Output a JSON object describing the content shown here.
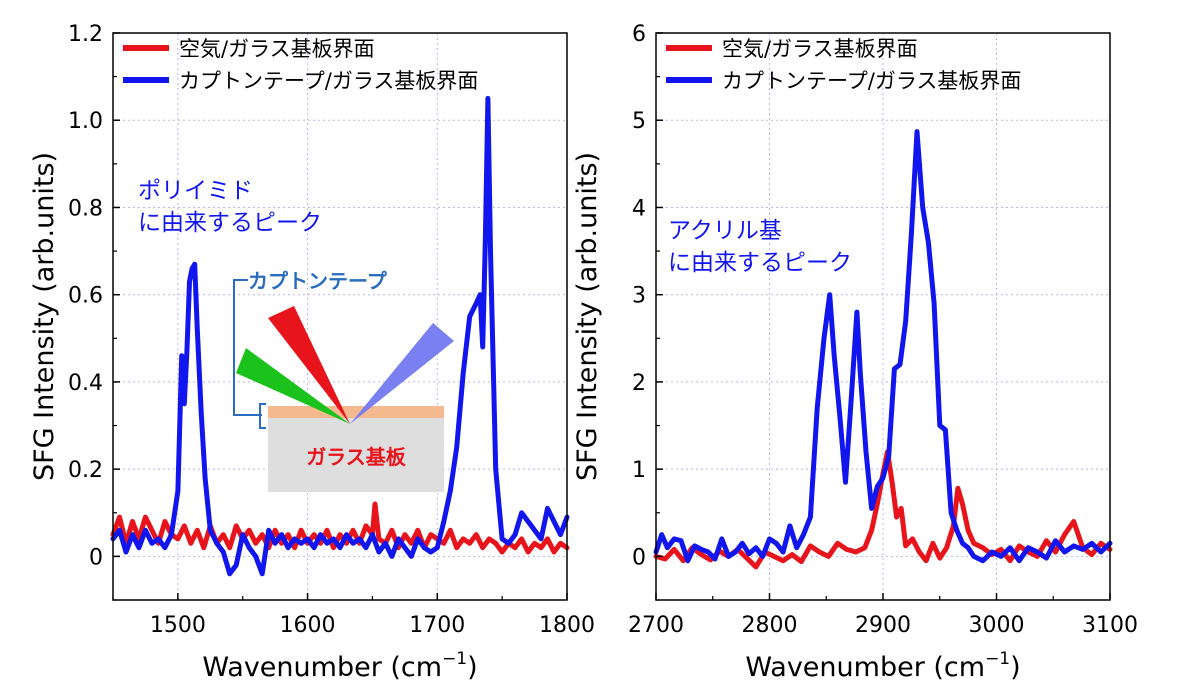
{
  "colors": {
    "red": "#e8141b",
    "blue": "#1216ee",
    "grid": "#b8b8e6",
    "bracket": "#2a6cc0",
    "substrate_fill": "#dedede",
    "tape_fill": "#f4b98f"
  },
  "chart_data": [
    {
      "type": "line",
      "xlabel": "Wavenumber (cm",
      "xlabel_sup": "−1",
      "xlabel_end": ")",
      "ylabel": "SFG Intensity (arb.units)",
      "xlim": [
        1450,
        1800
      ],
      "ylim": [
        -0.1,
        1.2
      ],
      "xticks": [
        1500,
        1600,
        1700,
        1800
      ],
      "xtick_labels": [
        "1500",
        "1600",
        "1700",
        "1800"
      ],
      "yticks": [
        0,
        0.2,
        0.4,
        0.6,
        0.8,
        1.0,
        1.2
      ],
      "ytick_labels": [
        "0",
        "0.2",
        "0.4",
        "0.6",
        "0.8",
        "1.0",
        "1.2"
      ],
      "grid": true,
      "legend_position": "top-left",
      "series": [
        {
          "name": "空気/ガラス基板界面",
          "color_key": "red",
          "x": [
            1450,
            1455,
            1460,
            1465,
            1470,
            1475,
            1480,
            1485,
            1490,
            1495,
            1500,
            1505,
            1510,
            1515,
            1520,
            1525,
            1530,
            1535,
            1540,
            1545,
            1550,
            1555,
            1560,
            1565,
            1570,
            1575,
            1580,
            1585,
            1590,
            1595,
            1600,
            1605,
            1610,
            1615,
            1620,
            1625,
            1630,
            1635,
            1640,
            1645,
            1650,
            1652,
            1655,
            1660,
            1665,
            1670,
            1675,
            1680,
            1685,
            1690,
            1695,
            1700,
            1705,
            1710,
            1715,
            1720,
            1725,
            1730,
            1735,
            1740,
            1745,
            1750,
            1755,
            1760,
            1765,
            1770,
            1775,
            1780,
            1785,
            1790,
            1795,
            1800
          ],
          "y": [
            0.05,
            0.09,
            0.03,
            0.08,
            0.04,
            0.09,
            0.06,
            0.03,
            0.08,
            0.05,
            0.04,
            0.07,
            0.03,
            0.06,
            0.02,
            0.07,
            0.03,
            0.05,
            0.02,
            0.07,
            0.04,
            0.06,
            0.03,
            0.05,
            0.02,
            0.06,
            0.03,
            0.05,
            0.02,
            0.06,
            0.03,
            0.05,
            0.03,
            0.06,
            0.02,
            0.05,
            0.03,
            0.06,
            0.03,
            0.07,
            0.05,
            0.12,
            0.04,
            0.03,
            0.06,
            0.02,
            0.05,
            0.03,
            0.06,
            0.02,
            0.05,
            0.04,
            0.03,
            0.06,
            0.02,
            0.04,
            0.03,
            0.05,
            0.02,
            0.04,
            0.03,
            0.01,
            0.03,
            0.02,
            0.04,
            0.01,
            0.03,
            0.02,
            0.04,
            0.01,
            0.03,
            0.02
          ]
        },
        {
          "name": "カプトンテープ/ガラス基板界面",
          "color_key": "blue",
          "x": [
            1450,
            1455,
            1460,
            1465,
            1470,
            1475,
            1480,
            1485,
            1490,
            1495,
            1500,
            1503,
            1505,
            1507,
            1509,
            1511,
            1513,
            1515,
            1518,
            1521,
            1525,
            1530,
            1535,
            1540,
            1545,
            1550,
            1555,
            1560,
            1565,
            1570,
            1575,
            1580,
            1585,
            1590,
            1595,
            1600,
            1605,
            1610,
            1615,
            1620,
            1625,
            1630,
            1635,
            1640,
            1645,
            1650,
            1655,
            1660,
            1665,
            1670,
            1675,
            1680,
            1685,
            1690,
            1695,
            1700,
            1705,
            1710,
            1715,
            1720,
            1725,
            1730,
            1733,
            1735,
            1737,
            1739,
            1741,
            1743,
            1745,
            1750,
            1755,
            1760,
            1765,
            1770,
            1775,
            1780,
            1785,
            1790,
            1795,
            1800
          ],
          "y": [
            0.04,
            0.06,
            0.01,
            0.05,
            0.02,
            0.06,
            0.03,
            0.04,
            0.02,
            0.05,
            0.15,
            0.46,
            0.35,
            0.47,
            0.63,
            0.66,
            0.67,
            0.52,
            0.33,
            0.18,
            0.06,
            0.03,
            0.01,
            -0.04,
            -0.02,
            0.05,
            0.02,
            0.0,
            -0.04,
            0.06,
            0.03,
            0.05,
            0.02,
            0.04,
            0.03,
            0.04,
            0.02,
            0.05,
            0.03,
            0.04,
            0.02,
            0.05,
            0.03,
            0.04,
            0.02,
            0.05,
            0.01,
            0.03,
            0.0,
            0.04,
            0.02,
            0.0,
            0.04,
            0.02,
            0.01,
            0.02,
            0.08,
            0.15,
            0.25,
            0.42,
            0.55,
            0.58,
            0.6,
            0.48,
            0.72,
            1.05,
            0.7,
            0.45,
            0.2,
            0.04,
            0.03,
            0.05,
            0.1,
            0.08,
            0.06,
            0.04,
            0.11,
            0.08,
            0.05,
            0.09
          ]
        }
      ],
      "annotations": {
        "peak_label_line1": "ポリイミド",
        "peak_label_line2": "に由来するピーク",
        "tape_label": "カプトンテープ",
        "substrate_label": "ガラス基板"
      }
    },
    {
      "type": "line",
      "xlabel": "Wavenumber (cm",
      "xlabel_sup": "−1",
      "xlabel_end": ")",
      "ylabel": "SFG Intensity (arb.units)",
      "xlim": [
        2700,
        3100
      ],
      "ylim": [
        -0.5,
        6
      ],
      "xticks": [
        2700,
        2800,
        2900,
        3000,
        3100
      ],
      "xtick_labels": [
        "2700",
        "2800",
        "2900",
        "3000",
        "3100"
      ],
      "yticks": [
        0,
        1,
        2,
        3,
        4,
        5,
        6
      ],
      "ytick_labels": [
        "0",
        "1",
        "2",
        "3",
        "4",
        "5",
        "6"
      ],
      "grid": true,
      "legend_position": "top-left",
      "series": [
        {
          "name": "空気/ガラス基板界面",
          "color_key": "red",
          "x": [
            2700,
            2708,
            2716,
            2724,
            2732,
            2740,
            2748,
            2756,
            2764,
            2772,
            2780,
            2788,
            2796,
            2804,
            2812,
            2820,
            2828,
            2836,
            2844,
            2852,
            2860,
            2868,
            2876,
            2884,
            2890,
            2895,
            2900,
            2904,
            2908,
            2912,
            2916,
            2920,
            2926,
            2932,
            2938,
            2944,
            2950,
            2956,
            2962,
            2966,
            2970,
            2975,
            2980,
            2988,
            2996,
            3004,
            3012,
            3020,
            3028,
            3036,
            3044,
            3052,
            3060,
            3068,
            3076,
            3084,
            3092,
            3100
          ],
          "y": [
            0.0,
            -0.03,
            0.08,
            -0.05,
            0.1,
            0.02,
            -0.04,
            0.06,
            0.0,
            0.08,
            -0.02,
            -0.12,
            0.05,
            0.0,
            -0.05,
            0.02,
            -0.06,
            0.12,
            0.05,
            0.0,
            0.15,
            0.08,
            0.05,
            0.1,
            0.3,
            0.6,
            0.95,
            1.2,
            0.85,
            0.45,
            0.55,
            0.12,
            0.2,
            0.05,
            -0.05,
            0.15,
            -0.02,
            0.1,
            0.35,
            0.78,
            0.6,
            0.3,
            0.15,
            0.1,
            0.02,
            0.08,
            -0.05,
            0.12,
            0.05,
            0.0,
            0.18,
            0.05,
            0.25,
            0.4,
            0.1,
            0.02,
            0.15,
            0.08
          ]
        },
        {
          "name": "カプトンテープ/ガラス基板界面",
          "color_key": "blue",
          "x": [
            2700,
            2705,
            2710,
            2716,
            2722,
            2728,
            2734,
            2740,
            2746,
            2752,
            2758,
            2764,
            2770,
            2776,
            2782,
            2788,
            2794,
            2800,
            2806,
            2812,
            2818,
            2824,
            2830,
            2836,
            2842,
            2848,
            2853,
            2857,
            2862,
            2867,
            2872,
            2877,
            2880,
            2885,
            2890,
            2895,
            2900,
            2905,
            2910,
            2915,
            2920,
            2925,
            2930,
            2935,
            2940,
            2945,
            2950,
            2955,
            2960,
            2965,
            2970,
            2975,
            2980,
            2988,
            2996,
            3004,
            3012,
            3020,
            3028,
            3036,
            3044,
            3052,
            3060,
            3068,
            3076,
            3084,
            3092,
            3100
          ],
          "y": [
            0.05,
            0.25,
            0.1,
            0.2,
            0.18,
            -0.05,
            0.12,
            0.08,
            0.05,
            -0.03,
            0.2,
            0.0,
            0.05,
            0.15,
            0.03,
            0.1,
            0.0,
            0.2,
            0.15,
            0.05,
            0.35,
            0.1,
            0.25,
            0.45,
            1.7,
            2.5,
            3.0,
            2.3,
            1.6,
            0.85,
            1.8,
            2.8,
            2.1,
            1.2,
            0.55,
            0.8,
            0.9,
            1.15,
            2.15,
            2.2,
            2.7,
            3.7,
            4.87,
            4.0,
            3.6,
            2.9,
            1.5,
            1.45,
            0.5,
            0.3,
            0.15,
            0.1,
            0.0,
            -0.05,
            0.05,
            0.0,
            0.1,
            -0.05,
            0.1,
            0.05,
            -0.02,
            0.18,
            0.05,
            0.12,
            0.08,
            0.15,
            0.05,
            0.15
          ]
        }
      ],
      "annotations": {
        "peak_label_line1": "アクリル基",
        "peak_label_line2": "に由来するピーク"
      }
    }
  ]
}
